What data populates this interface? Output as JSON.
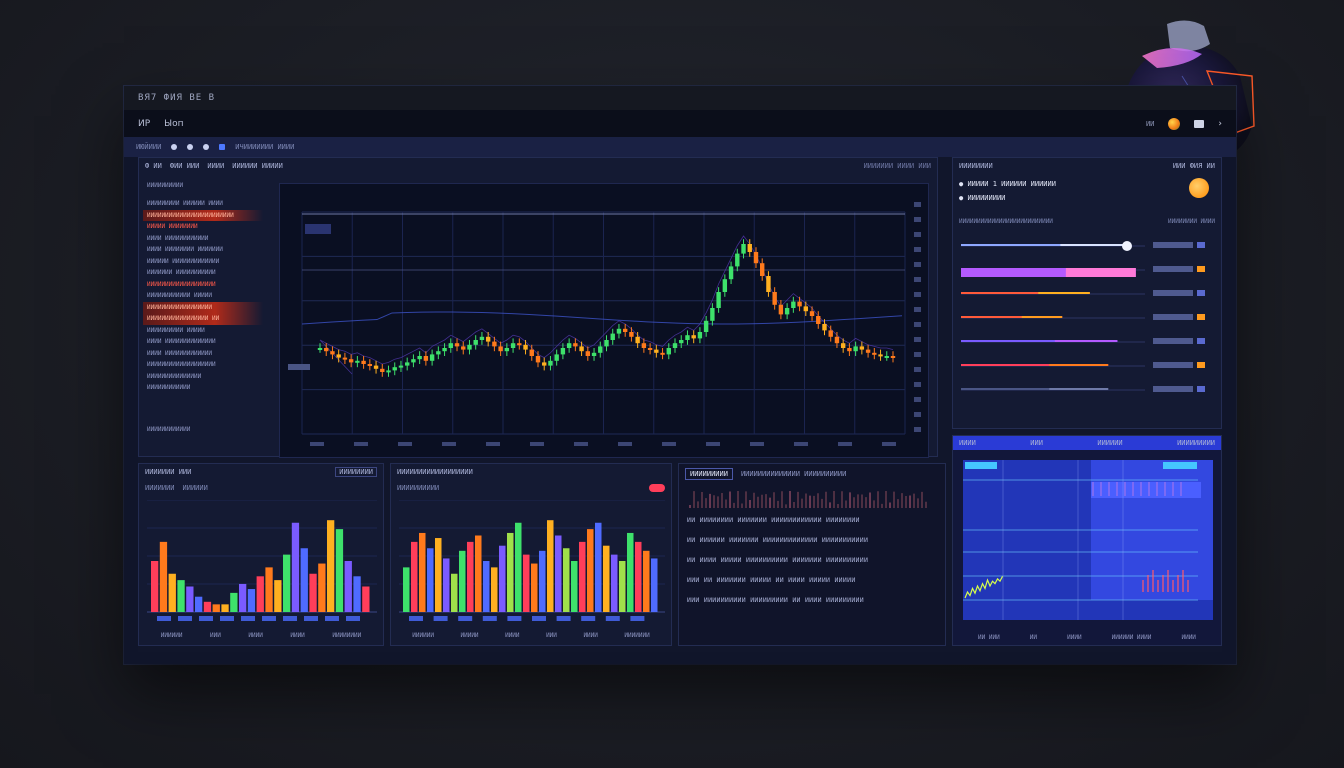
{
  "window": {
    "title": "ВЯ7 ФИЯ ВЕ В",
    "menu": [
      "ИР",
      "Ыоп"
    ],
    "toolbar": [
      "ИЮЙИИИ",
      "ИЧИИИИИИИ ИИИИ"
    ]
  },
  "main_panel": {
    "header": [
      "Ф ИИ",
      "ФИИ ИИИ",
      "ИИИИ",
      "ИИИИИИ ИИИИИ"
    ],
    "header_right": "ИИИИИИИ ИИИИ ИИИ",
    "watchlist_title": "ИИИИИИИИИИ",
    "watchlist": [
      {
        "text": "ИИИИИИИИИ ИИИИИИ ИИИИ",
        "style": ""
      },
      {
        "text": "ИИИИИИИИИИИИИИИИИИИИИИИИ",
        "style": "hi"
      },
      {
        "text": "ИИИИИ ИИИИИИИИ",
        "style": "red"
      },
      {
        "text": "ИИИИ ИИИИИИИИИИИИ",
        "style": ""
      },
      {
        "text": "ИИИИ ИИИИИИИИ ИИИИИИИ",
        "style": ""
      },
      {
        "text": "ИИИИИИ ИИИИИИИИИИИИИ",
        "style": ""
      },
      {
        "text": "ИИИИИИИ ИИИИИИИИИИИ",
        "style": ""
      },
      {
        "text": "ИИИИИИИИИИИИИИИИИИИ",
        "style": "red"
      },
      {
        "text": "ИИИИИИИИИИИИ ИИИИИ",
        "style": ""
      },
      {
        "text": "ИИИИИИИИИИИИИИИИИИ",
        "style": "hi"
      },
      {
        "text": "ИИИИИИИИИИИИИИИИИ ИИ",
        "style": "hi"
      },
      {
        "text": "ИИИИИИИИИИ ИИИИИ",
        "style": ""
      },
      {
        "text": "ИИИИ ИИИИИИИИИИИИИИ",
        "style": ""
      },
      {
        "text": "ИИИИ ИИИИИИИИИИИИИ",
        "style": ""
      },
      {
        "text": "ИИИИИИИИИИИИИИИИИИИ",
        "style": ""
      },
      {
        "text": "ИИИИИИИИИИИИИИИ",
        "style": ""
      },
      {
        "text": "ИИИИИИИИИИИИ",
        "style": ""
      }
    ],
    "watchlist_footer": "ИИИИИИИИИИИИ"
  },
  "chart_data": [
    {
      "type": "candlestick",
      "title": "",
      "candles_close": [
        35,
        33,
        31,
        29,
        28,
        26,
        27,
        25,
        24,
        22,
        20,
        21,
        23,
        24,
        26,
        28,
        30,
        27,
        31,
        33,
        35,
        38,
        36,
        34,
        37,
        40,
        42,
        39,
        36,
        33,
        35,
        38,
        37,
        34,
        30,
        26,
        24,
        27,
        31,
        35,
        38,
        36,
        33,
        30,
        32,
        36,
        40,
        44,
        47,
        45,
        42,
        38,
        35,
        34,
        32,
        31,
        35,
        38,
        40,
        43,
        41,
        45,
        52,
        60,
        70,
        78,
        86,
        94,
        100,
        95,
        88,
        80,
        70,
        62,
        56,
        60,
        64,
        61,
        58,
        55,
        50,
        46,
        42,
        38,
        35,
        33,
        36,
        34,
        32,
        31,
        30,
        30,
        29
      ],
      "colors": {
        "up": "#3ee16b",
        "down": "#ff7a1c",
        "mid": "#ffb020"
      }
    },
    {
      "type": "bar",
      "title": "",
      "values": [
        40,
        55,
        30,
        25,
        20,
        12,
        8,
        6,
        6,
        15,
        22,
        18,
        28,
        35,
        25,
        45,
        70,
        50,
        30,
        38,
        72,
        65,
        40,
        28,
        20
      ]
    },
    {
      "type": "bar",
      "title": "",
      "values": [
        35,
        55,
        62,
        50,
        58,
        42,
        30,
        48,
        55,
        60,
        40,
        35,
        52,
        62,
        70,
        45,
        38,
        48,
        72,
        60,
        50,
        40,
        55,
        65,
        70,
        52,
        45,
        40,
        62,
        55,
        48,
        42
      ]
    },
    {
      "type": "line",
      "title": "",
      "values": [
        10,
        15,
        12,
        18,
        14,
        20,
        16,
        22,
        18,
        25,
        20,
        24,
        22,
        26,
        24,
        28
      ]
    }
  ],
  "right_panel": {
    "title": "ИИИИИИИИ",
    "title_right": "ИИИ ФИЯ ИИ",
    "items": [
      "ИИИИИ 1 ИИИИИИ ИИИИИИ",
      "ИИИИИИИИИ"
    ],
    "sub_header": "ИИИИИИИИИИИИИИИИИИИИИИИИИИ",
    "sub_header_right": "ИИИИИИИИ ИИИИ",
    "rows": [
      "ИИИИ ИИИИ",
      "ИИИИИИИИИ",
      "ИИИИИИИ",
      "ИИИИИИИИ",
      "ИИИИИИИИИИИ",
      "ИИИИ ИИИИ",
      "ИИИИИИИИ",
      "ИИИИИИИИ"
    ],
    "bottom_axis": [
      "ИИИИИИ",
      "ИИИИ",
      "ИИИИИИИИ",
      "ИИИИИИ"
    ]
  },
  "bottom_left_panel": {
    "title": "ИИИИИИИ ИИИ",
    "tab": "ИИИИИИИИ",
    "legend": [
      "ИИИИИИИ",
      "ИИИИИИ"
    ],
    "axis": [
      "ИИИИИИ",
      "ИИИ",
      "ИИИИ",
      "ИИИИ",
      "ИИИИИИИИ"
    ]
  },
  "bottom_mid_panel": {
    "title": "ИИИИИИИИИИИИИИИИИИ",
    "legend": "ИИИИИИИИИИ",
    "axis": [
      "ИИИИИИ",
      "ИИИИИ",
      "ИИИИ",
      "ИИИ",
      "ИИИИ",
      "ИИИИИИИ"
    ]
  },
  "table_panel": {
    "tab_active": "ИИИИИИИИИ",
    "tab_inactive": "ИИИИИИИИИИИИИИ ИИИИИИИИИИ",
    "rows": [
      "ИИ ИИИИИИИИ ИИИИИИИ ИИИИИИИИИИИИ ИИИИИИИИ",
      "ИИ ИИИИИИ ИИИИИИИ ИИИИИИИИИИИИИ ИИИИИИИИИИИ",
      "ИИ ИИИИ ИИИИИ ИИИИИИИИИИ ИИИИИИИ ИИИИИИИИИИ",
      "ИИИ ИИ ИИИИИИИ ИИИИИ ИИ ИИИИ ИИИИИ ИИИИИ",
      "ИИИ ИИИИИИИИИИ ИИИИИИИИИ ИИ ИИИИ ИИИИИИИИИ"
    ]
  },
  "bottom_right_panel": {
    "tabs": [
      "ИИИИ",
      "ИИИ",
      "ИИИИИИ",
      "ИИИИИИИИИ"
    ],
    "axis": [
      "ИИ ИИИ",
      "ИИ",
      "ИИИИ",
      "ИИИИИИ ИИИИ",
      "ИИИИ"
    ]
  }
}
